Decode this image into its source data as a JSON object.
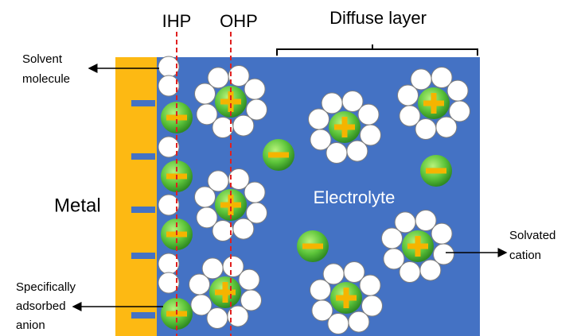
{
  "labels": {
    "ihp": "IHP",
    "ohp": "OHP",
    "diffuse_layer": "Diffuse layer",
    "solvent_molecule": [
      "Solvent",
      "molecule"
    ],
    "metal": "Metal",
    "electrolyte": "Electrolyte",
    "solvated_cation": [
      "Solvated",
      "cation"
    ],
    "specifically_adsorbed_anion": [
      "Specifically",
      "adsorbed",
      "anion"
    ]
  }
}
